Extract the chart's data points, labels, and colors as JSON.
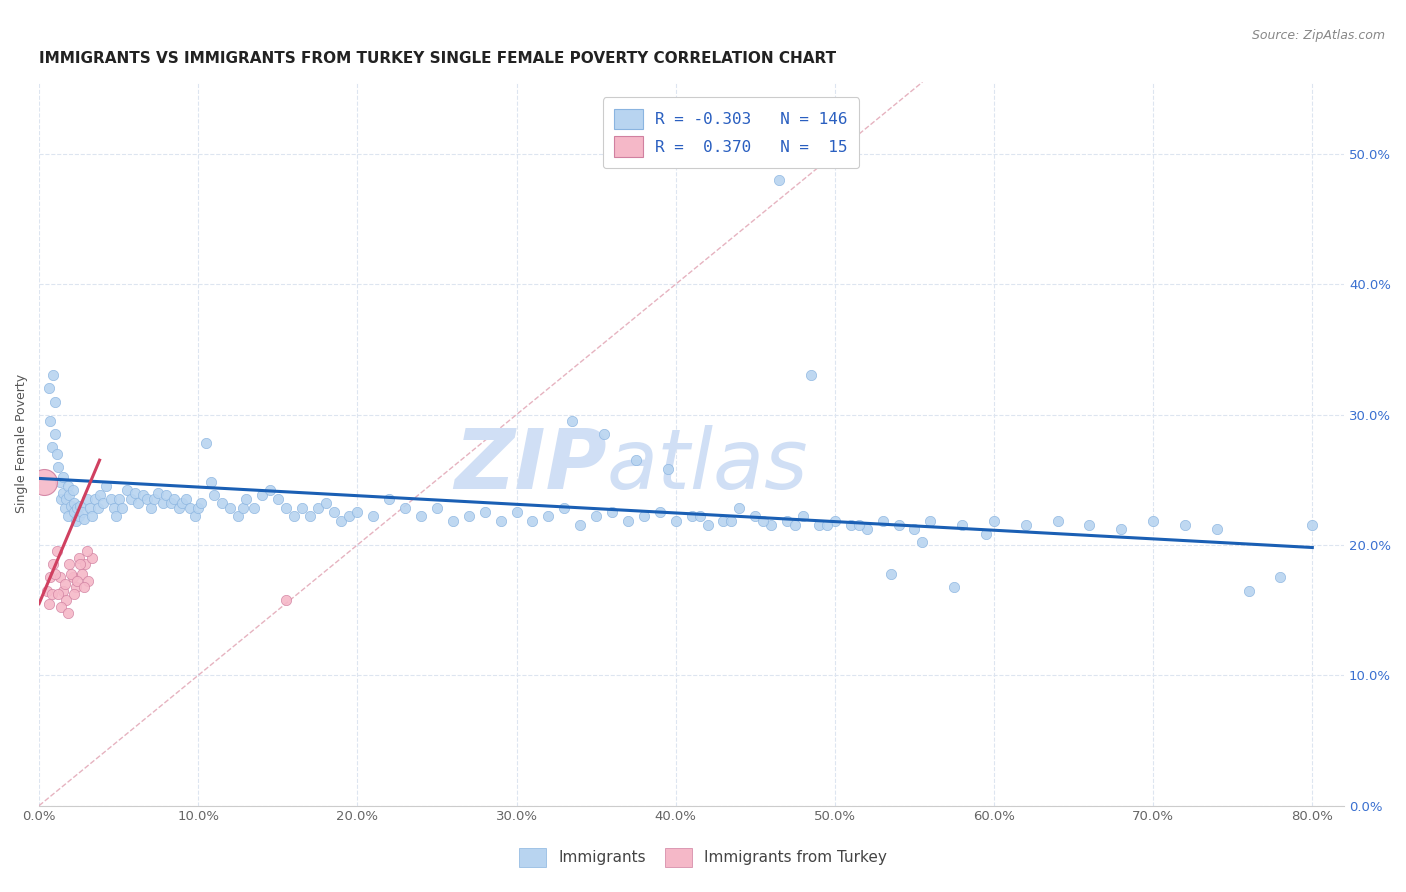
{
  "title": "IMMIGRANTS VS IMMIGRANTS FROM TURKEY SINGLE FEMALE POVERTY CORRELATION CHART",
  "source": "Source: ZipAtlas.com",
  "ylabel": "Single Female Poverty",
  "xlim": [
    0,
    0.82
  ],
  "ylim": [
    0,
    0.555
  ],
  "yticks": [
    0.0,
    0.1,
    0.2,
    0.3,
    0.4,
    0.5
  ],
  "xticks": [
    0.0,
    0.1,
    0.2,
    0.3,
    0.4,
    0.5,
    0.6,
    0.7,
    0.8
  ],
  "color_immigrants": "#b8d4f0",
  "color_turkey": "#f5b8c8",
  "color_line_immigrants": "#1a5fb4",
  "color_line_turkey": "#d04060",
  "color_diag": "#e0a0b0",
  "color_legend_text": "#2a5fc0",
  "color_legend_label": "#333333",
  "watermark_color": "#d0dff5",
  "watermark_fontsize": 60,
  "background_color": "#ffffff",
  "grid_color": "#dde5f0",
  "title_fontsize": 11,
  "source_fontsize": 9,
  "axis_label_fontsize": 9,
  "tick_fontsize": 9.5,
  "imm_trendline": [
    0.0,
    0.251,
    0.8,
    0.198
  ],
  "turkey_trendline": [
    0.0,
    0.155,
    0.038,
    0.265
  ],
  "diag_trendline": [
    0.0,
    0.0,
    0.555,
    0.555
  ],
  "immigrants_x": [
    0.006,
    0.007,
    0.008,
    0.009,
    0.01,
    0.01,
    0.011,
    0.012,
    0.013,
    0.014,
    0.015,
    0.015,
    0.016,
    0.017,
    0.018,
    0.018,
    0.019,
    0.02,
    0.021,
    0.022,
    0.022,
    0.023,
    0.024,
    0.025,
    0.026,
    0.027,
    0.028,
    0.03,
    0.032,
    0.033,
    0.035,
    0.037,
    0.038,
    0.04,
    0.042,
    0.045,
    0.047,
    0.048,
    0.05,
    0.052,
    0.055,
    0.058,
    0.06,
    0.062,
    0.065,
    0.068,
    0.07,
    0.072,
    0.075,
    0.078,
    0.08,
    0.083,
    0.085,
    0.088,
    0.09,
    0.092,
    0.095,
    0.098,
    0.1,
    0.102,
    0.105,
    0.108,
    0.11,
    0.115,
    0.12,
    0.125,
    0.128,
    0.13,
    0.135,
    0.14,
    0.145,
    0.15,
    0.155,
    0.16,
    0.165,
    0.17,
    0.175,
    0.18,
    0.185,
    0.19,
    0.195,
    0.2,
    0.21,
    0.22,
    0.23,
    0.24,
    0.25,
    0.26,
    0.27,
    0.28,
    0.29,
    0.3,
    0.31,
    0.32,
    0.33,
    0.34,
    0.35,
    0.36,
    0.37,
    0.38,
    0.39,
    0.4,
    0.41,
    0.42,
    0.43,
    0.44,
    0.45,
    0.46,
    0.47,
    0.48,
    0.49,
    0.5,
    0.51,
    0.52,
    0.53,
    0.54,
    0.55,
    0.56,
    0.58,
    0.6,
    0.62,
    0.64,
    0.66,
    0.68,
    0.7,
    0.72,
    0.74,
    0.76,
    0.78,
    0.8,
    0.465,
    0.485,
    0.335,
    0.355,
    0.375,
    0.395,
    0.415,
    0.435,
    0.455,
    0.475,
    0.495,
    0.515,
    0.535,
    0.555,
    0.575,
    0.595
  ],
  "immigrants_y": [
    0.32,
    0.295,
    0.275,
    0.33,
    0.31,
    0.285,
    0.27,
    0.26,
    0.248,
    0.235,
    0.252,
    0.24,
    0.228,
    0.235,
    0.222,
    0.245,
    0.238,
    0.23,
    0.242,
    0.232,
    0.225,
    0.218,
    0.228,
    0.222,
    0.23,
    0.225,
    0.22,
    0.235,
    0.228,
    0.222,
    0.235,
    0.228,
    0.238,
    0.232,
    0.245,
    0.235,
    0.228,
    0.222,
    0.235,
    0.228,
    0.242,
    0.235,
    0.24,
    0.232,
    0.238,
    0.235,
    0.228,
    0.235,
    0.24,
    0.232,
    0.238,
    0.232,
    0.235,
    0.228,
    0.232,
    0.235,
    0.228,
    0.222,
    0.228,
    0.232,
    0.278,
    0.248,
    0.238,
    0.232,
    0.228,
    0.222,
    0.228,
    0.235,
    0.228,
    0.238,
    0.242,
    0.235,
    0.228,
    0.222,
    0.228,
    0.222,
    0.228,
    0.232,
    0.225,
    0.218,
    0.222,
    0.225,
    0.222,
    0.235,
    0.228,
    0.222,
    0.228,
    0.218,
    0.222,
    0.225,
    0.218,
    0.225,
    0.218,
    0.222,
    0.228,
    0.215,
    0.222,
    0.225,
    0.218,
    0.222,
    0.225,
    0.218,
    0.222,
    0.215,
    0.218,
    0.228,
    0.222,
    0.215,
    0.218,
    0.222,
    0.215,
    0.218,
    0.215,
    0.212,
    0.218,
    0.215,
    0.212,
    0.218,
    0.215,
    0.218,
    0.215,
    0.218,
    0.215,
    0.212,
    0.218,
    0.215,
    0.212,
    0.165,
    0.175,
    0.215,
    0.48,
    0.33,
    0.295,
    0.285,
    0.265,
    0.258,
    0.222,
    0.218,
    0.218,
    0.215,
    0.215,
    0.215,
    0.178,
    0.202,
    0.168,
    0.208
  ],
  "turkey_x": [
    0.005,
    0.007,
    0.009,
    0.011,
    0.013,
    0.015,
    0.017,
    0.019,
    0.021,
    0.023,
    0.025,
    0.027,
    0.029,
    0.031,
    0.033,
    0.006,
    0.008,
    0.01,
    0.012,
    0.014,
    0.016,
    0.018,
    0.02,
    0.022,
    0.024,
    0.026,
    0.028,
    0.03,
    0.155
  ],
  "turkey_y": [
    0.165,
    0.175,
    0.185,
    0.195,
    0.175,
    0.165,
    0.158,
    0.185,
    0.175,
    0.168,
    0.19,
    0.178,
    0.185,
    0.172,
    0.19,
    0.155,
    0.162,
    0.178,
    0.162,
    0.152,
    0.17,
    0.148,
    0.178,
    0.162,
    0.172,
    0.185,
    0.168,
    0.195,
    0.158
  ],
  "turkey_large_x": [
    0.003
  ],
  "turkey_large_y": [
    0.248
  ],
  "turkey_large_size": 350
}
